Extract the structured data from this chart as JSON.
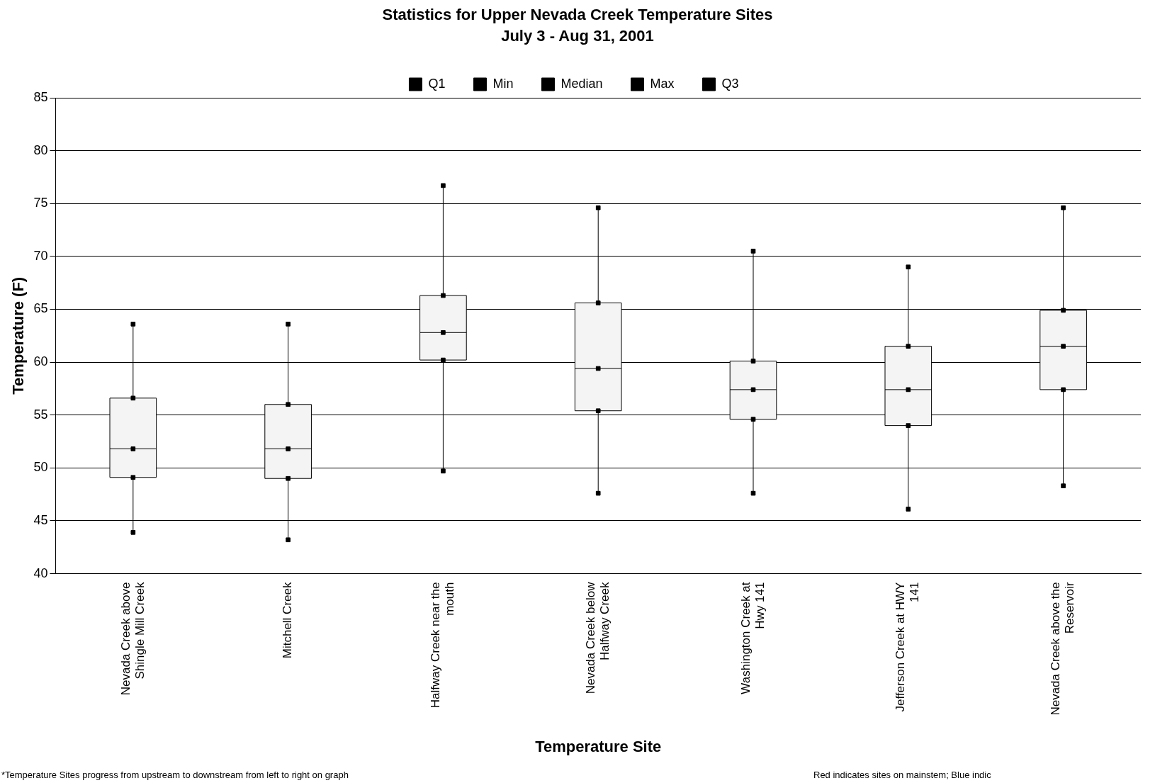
{
  "chart_data": {
    "type": "box",
    "title": "Statistics for Upper Nevada Creek Temperature Sites",
    "subtitle": "July 3 - Aug 31, 2001",
    "xlabel": "Temperature Site",
    "ylabel": "Temperature (F)",
    "categories": [
      "Nevada Creek above Shingle Mill Creek",
      "Mitchell Creek",
      "Halfway Creek near the mouth",
      "Nevada Creek below Halfway Creek",
      "Washington Creek at Hwy 141",
      "Jefferson Creek at HWY 141",
      "Nevada Creek above the Reservoir"
    ],
    "boxes": [
      {
        "low": 43.9,
        "q1": 49.1,
        "median": 51.8,
        "q3": 56.6,
        "high": 63.6
      },
      {
        "low": 43.2,
        "q1": 49.0,
        "median": 51.8,
        "q3": 56.0,
        "high": 63.6
      },
      {
        "low": 49.7,
        "q1": 60.2,
        "median": 62.8,
        "q3": 66.3,
        "high": 76.7
      },
      {
        "low": 47.6,
        "q1": 55.4,
        "median": 59.4,
        "q3": 65.6,
        "high": 74.6
      },
      {
        "low": 47.6,
        "q1": 54.6,
        "median": 57.4,
        "q3": 60.1,
        "high": 70.5
      },
      {
        "low": 46.1,
        "q1": 54.0,
        "median": 57.4,
        "q3": 61.5,
        "high": 69.0
      },
      {
        "low": 48.3,
        "q1": 57.4,
        "median": 61.5,
        "q3": 64.9,
        "high": 74.6
      }
    ],
    "colors": [
      "#f4f4f4",
      "#f4f4f4",
      "#f4f4f4",
      "#f4f4f4",
      "#f4f4f4",
      "#f4f4f4",
      "#f4f4f4"
    ],
    "series": [
      {
        "name": "Q1",
        "type": "scatter",
        "color": "#000000",
        "x": [
          "Nevada Creek above Shingle Mill Creek",
          "Mitchell Creek",
          "Halfway Creek near the mouth",
          "Nevada Creek below Halfway Creek",
          "Washington Creek at Hwy 141",
          "Jefferson Creek at HWY 141",
          "Nevada Creek above the Reservoir"
        ],
        "values": [
          49.1,
          49.0,
          60.2,
          55.4,
          54.6,
          54.0,
          57.4
        ]
      },
      {
        "name": "Min",
        "type": "scatter",
        "color": "#000000",
        "x": [
          "Nevada Creek above Shingle Mill Creek",
          "Mitchell Creek",
          "Halfway Creek near the mouth",
          "Nevada Creek below Halfway Creek",
          "Washington Creek at Hwy 141",
          "Jefferson Creek at HWY 141",
          "Nevada Creek above the Reservoir"
        ],
        "values": [
          43.9,
          43.2,
          49.7,
          47.6,
          47.6,
          46.1,
          48.3
        ]
      },
      {
        "name": "Median",
        "type": "scatter",
        "color": "#000000",
        "x": [
          "Nevada Creek above Shingle Mill Creek",
          "Mitchell Creek",
          "Halfway Creek near the mouth",
          "Nevada Creek below Halfway Creek",
          "Washington Creek at Hwy 141",
          "Jefferson Creek at HWY 141",
          "Nevada Creek above the Reservoir"
        ],
        "values": [
          51.8,
          51.8,
          62.8,
          59.4,
          57.4,
          57.4,
          61.5
        ]
      },
      {
        "name": "Max",
        "type": "scatter",
        "color": "#000000",
        "x": [
          "Nevada Creek above Shingle Mill Creek",
          "Mitchell Creek",
          "Halfway Creek near the mouth",
          "Nevada Creek below Halfway Creek",
          "Washington Creek at Hwy 141",
          "Jefferson Creek at HWY 141",
          "Nevada Creek above the Reservoir"
        ],
        "values": [
          63.6,
          63.6,
          76.7,
          74.6,
          70.5,
          69.0,
          74.6
        ]
      },
      {
        "name": "Q3",
        "type": "scatter",
        "color": "#000000",
        "x": [
          "Nevada Creek above Shingle Mill Creek",
          "Mitchell Creek",
          "Halfway Creek near the mouth",
          "Nevada Creek below Halfway Creek",
          "Washington Creek at Hwy 141",
          "Jefferson Creek at HWY 141",
          "Nevada Creek above the Reservoir"
        ],
        "values": [
          56.6,
          56.0,
          66.3,
          65.6,
          60.1,
          61.5,
          64.9
        ]
      }
    ],
    "ylim": [
      40,
      85
    ],
    "yticks": [
      40,
      45,
      50,
      55,
      60,
      65,
      70,
      75,
      80,
      85
    ],
    "grid": "y",
    "legend": "top",
    "annotations": [
      "*Temperature Sites progress from upstream to downstream from left to right on graph",
      "Red indicates sites on mainstem; Blue indic"
    ]
  }
}
